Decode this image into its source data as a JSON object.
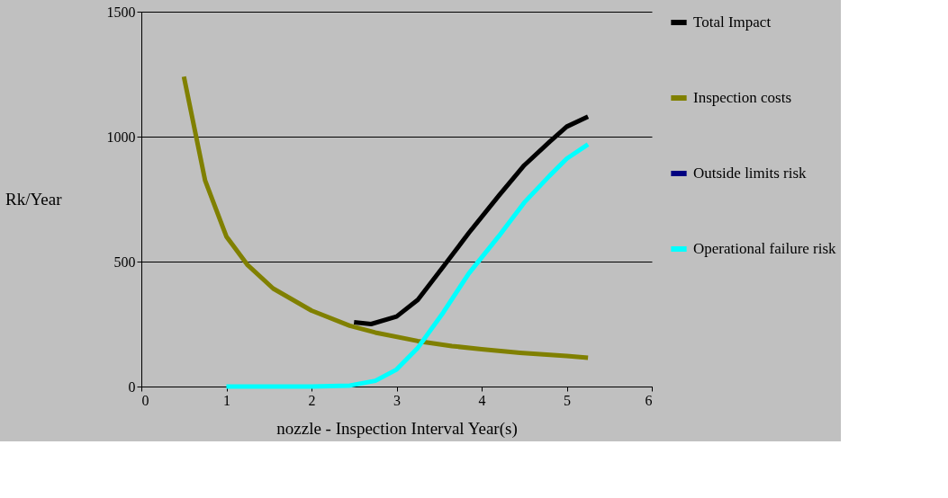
{
  "chart_data": {
    "type": "line",
    "xlabel": "nozzle - Inspection Interval Year(s)",
    "ylabel": "Rk/Year",
    "xlim": [
      0,
      6
    ],
    "xticks": [
      0,
      1,
      2,
      3,
      4,
      5,
      6
    ],
    "ylim": [
      0,
      1500
    ],
    "yticks": [
      0,
      500,
      1000,
      1500
    ],
    "grid": "y",
    "legend": "right",
    "marker": "none",
    "line_style": "solid",
    "series": [
      {
        "name": "Total Impact",
        "color": "#000000",
        "x": [
          2.5,
          2.7,
          3.0,
          3.25,
          3.55,
          3.85,
          4.2,
          4.5,
          4.8,
          5.0,
          5.25
        ],
        "values": [
          257,
          250,
          280,
          347,
          480,
          615,
          763,
          885,
          980,
          1040,
          1080
        ]
      },
      {
        "name": "Inspection costs",
        "color": "#808000",
        "x": [
          0.5,
          0.75,
          1.0,
          1.25,
          1.55,
          2.0,
          2.45,
          2.75,
          3.25,
          3.65,
          4.0,
          4.45,
          5.0,
          5.25
        ],
        "values": [
          1240,
          824,
          600,
          486,
          392,
          304,
          243,
          216,
          182,
          162,
          149,
          135,
          122,
          115
        ]
      },
      {
        "name": "Outside limits risk",
        "color": "#000080"
      },
      {
        "name": "Operational failure risk",
        "color": "#00ffff",
        "x": [
          1.0,
          2.0,
          2.45,
          2.75,
          3.0,
          3.25,
          3.55,
          3.85,
          4.2,
          4.5,
          4.8,
          5.0,
          5.25
        ],
        "values": [
          0,
          0,
          4,
          23,
          68,
          155,
          297,
          453,
          601,
          736,
          844,
          912,
          969
        ]
      }
    ]
  }
}
